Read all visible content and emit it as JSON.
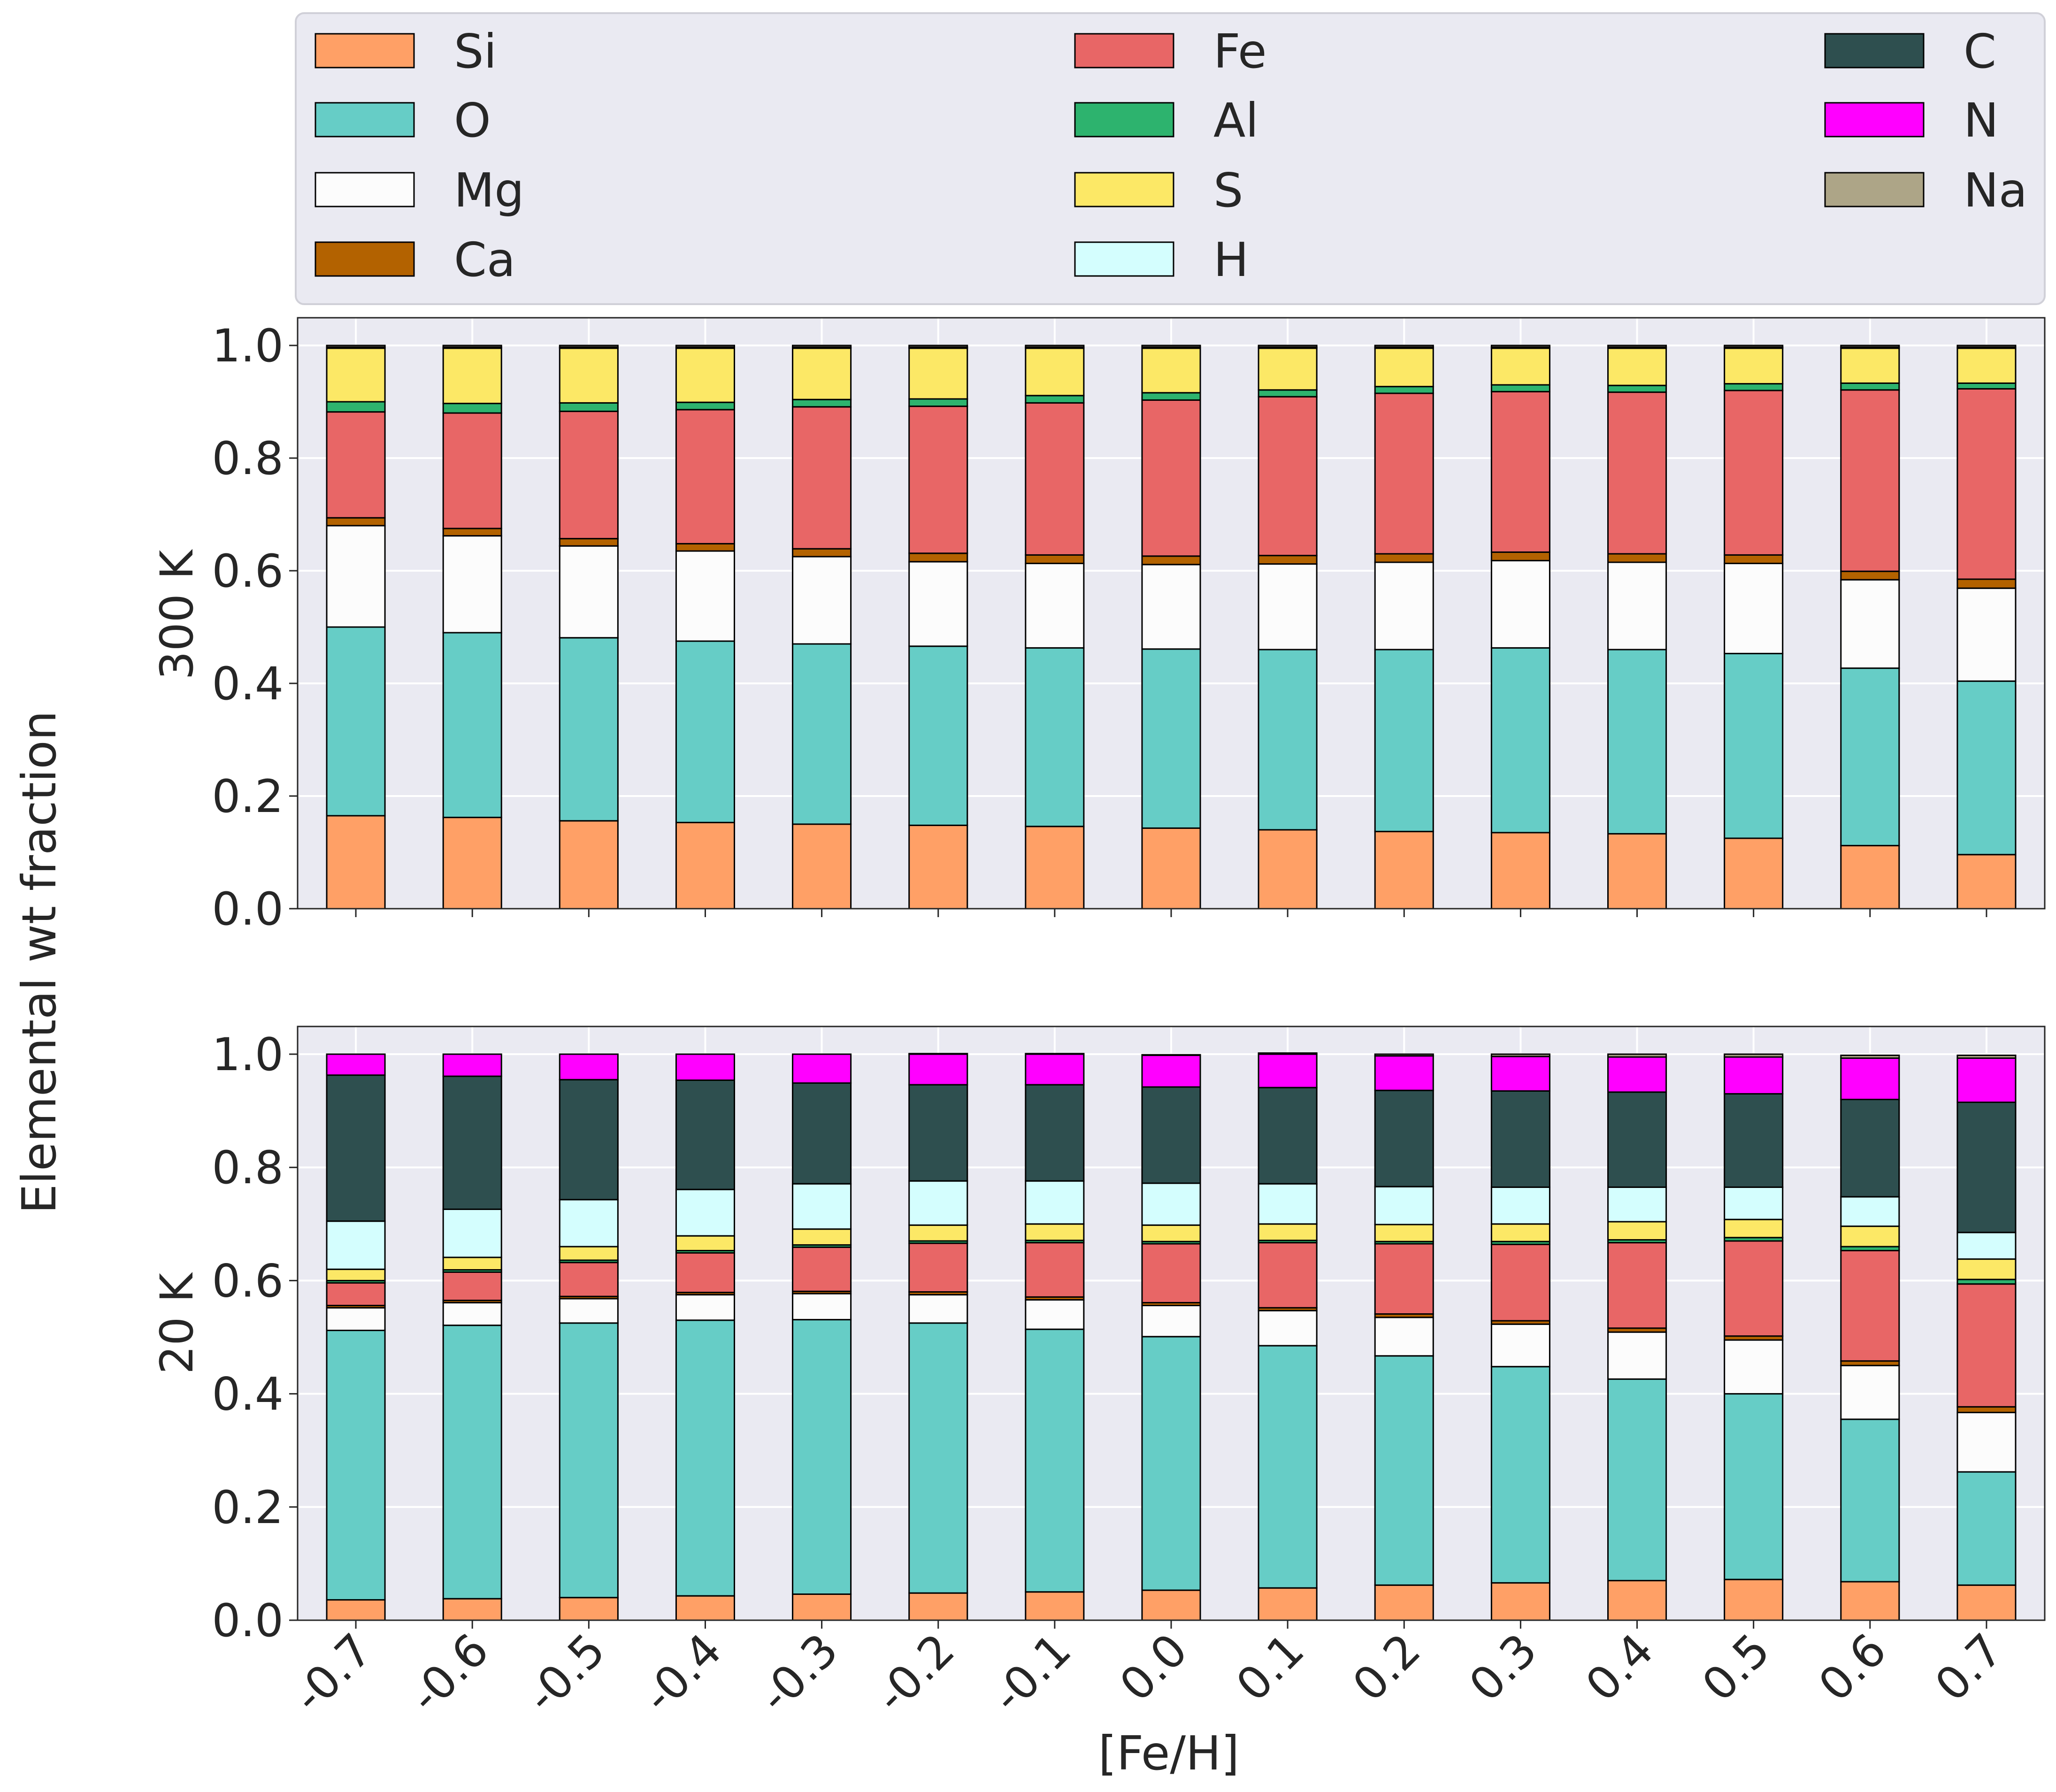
{
  "chart_data": {
    "type": "bar",
    "stacked": true,
    "ylabel": "Elemental wt fraction",
    "xlabel": "[Fe/H]",
    "legend_placement": "top",
    "categories": [
      "-0.7",
      "-0.6",
      "-0.5",
      "-0.4",
      "-0.3",
      "-0.2",
      "-0.1",
      "0.0",
      "0.1",
      "0.2",
      "0.3",
      "0.4",
      "0.5",
      "0.6",
      "0.7"
    ],
    "yticks": [
      "0.0",
      "0.2",
      "0.4",
      "0.6",
      "0.8",
      "1.0"
    ],
    "ylim": [
      0,
      1.05
    ],
    "legend": [
      {
        "name": "Si",
        "color": "#FFA066"
      },
      {
        "name": "O",
        "color": "#66CDC6"
      },
      {
        "name": "Mg",
        "color": "#FCFCFC"
      },
      {
        "name": "Ca",
        "color": "#B36200"
      },
      {
        "name": "Fe",
        "color": "#E86666"
      },
      {
        "name": "Al",
        "color": "#2DB36E"
      },
      {
        "name": "S",
        "color": "#FCE866"
      },
      {
        "name": "H",
        "color": "#D4FEFE"
      },
      {
        "name": "C",
        "color": "#2E4F4F"
      },
      {
        "name": "N",
        "color": "#FF00FF"
      },
      {
        "name": "Na",
        "color": "#ADA587"
      }
    ],
    "panels": [
      {
        "panel_label": "300 K",
        "series": [
          {
            "name": "Si",
            "values": [
              0.165,
              0.162,
              0.156,
              0.153,
              0.15,
              0.148,
              0.146,
              0.143,
              0.14,
              0.137,
              0.135,
              0.133,
              0.125,
              0.112,
              0.096
            ]
          },
          {
            "name": "O",
            "values": [
              0.335,
              0.328,
              0.325,
              0.322,
              0.32,
              0.318,
              0.317,
              0.318,
              0.32,
              0.323,
              0.328,
              0.327,
              0.328,
              0.315,
              0.308
            ]
          },
          {
            "name": "Mg",
            "values": [
              0.18,
              0.172,
              0.163,
              0.16,
              0.155,
              0.15,
              0.15,
              0.15,
              0.152,
              0.155,
              0.155,
              0.155,
              0.16,
              0.157,
              0.165
            ]
          },
          {
            "name": "Ca",
            "values": [
              0.014,
              0.013,
              0.013,
              0.013,
              0.014,
              0.015,
              0.015,
              0.015,
              0.015,
              0.015,
              0.015,
              0.015,
              0.015,
              0.015,
              0.016
            ]
          },
          {
            "name": "Fe",
            "values": [
              0.188,
              0.205,
              0.226,
              0.238,
              0.252,
              0.261,
              0.27,
              0.277,
              0.282,
              0.285,
              0.285,
              0.287,
              0.292,
              0.322,
              0.338
            ]
          },
          {
            "name": "Al",
            "values": [
              0.018,
              0.017,
              0.015,
              0.013,
              0.013,
              0.013,
              0.013,
              0.013,
              0.012,
              0.012,
              0.012,
              0.012,
              0.012,
              0.012,
              0.01
            ]
          },
          {
            "name": "S",
            "values": [
              0.095,
              0.098,
              0.097,
              0.096,
              0.091,
              0.09,
              0.084,
              0.079,
              0.074,
              0.068,
              0.065,
              0.066,
              0.063,
              0.062,
              0.062
            ]
          },
          {
            "name": "H",
            "values": [
              0,
              0,
              0,
              0,
              0,
              0,
              0,
              0,
              0,
              0,
              0,
              0,
              0,
              0,
              0
            ]
          },
          {
            "name": "C",
            "values": [
              0.002,
              0.002,
              0.002,
              0.002,
              0.002,
              0.002,
              0.002,
              0.002,
              0.002,
              0.002,
              0.002,
              0.002,
              0.002,
              0.002,
              0.002
            ]
          },
          {
            "name": "N",
            "values": [
              0,
              0,
              0,
              0,
              0,
              0,
              0,
              0,
              0,
              0,
              0,
              0,
              0,
              0,
              0
            ]
          },
          {
            "name": "Na",
            "values": [
              0.003,
              0.003,
              0.003,
              0.003,
              0.003,
              0.003,
              0.003,
              0.003,
              0.003,
              0.003,
              0.003,
              0.003,
              0.003,
              0.003,
              0.003
            ]
          }
        ]
      },
      {
        "panel_label": "20 K",
        "series": [
          {
            "name": "Si",
            "values": [
              0.036,
              0.038,
              0.04,
              0.043,
              0.046,
              0.048,
              0.05,
              0.053,
              0.057,
              0.062,
              0.066,
              0.07,
              0.072,
              0.068,
              0.062
            ]
          },
          {
            "name": "O",
            "values": [
              0.476,
              0.483,
              0.485,
              0.487,
              0.485,
              0.477,
              0.464,
              0.448,
              0.428,
              0.405,
              0.382,
              0.356,
              0.328,
              0.287,
              0.2
            ]
          },
          {
            "name": "Mg",
            "values": [
              0.04,
              0.04,
              0.043,
              0.045,
              0.046,
              0.05,
              0.052,
              0.055,
              0.062,
              0.068,
              0.075,
              0.083,
              0.095,
              0.095,
              0.105
            ]
          },
          {
            "name": "Ca",
            "values": [
              0.004,
              0.004,
              0.004,
              0.004,
              0.004,
              0.005,
              0.005,
              0.005,
              0.005,
              0.006,
              0.006,
              0.007,
              0.007,
              0.008,
              0.01
            ]
          },
          {
            "name": "Fe",
            "values": [
              0.04,
              0.05,
              0.06,
              0.07,
              0.078,
              0.086,
              0.096,
              0.104,
              0.115,
              0.124,
              0.135,
              0.151,
              0.168,
              0.195,
              0.217
            ]
          },
          {
            "name": "Al",
            "values": [
              0.004,
              0.004,
              0.004,
              0.004,
              0.004,
              0.004,
              0.004,
              0.004,
              0.004,
              0.004,
              0.005,
              0.005,
              0.006,
              0.007,
              0.008
            ]
          },
          {
            "name": "S",
            "values": [
              0.02,
              0.022,
              0.024,
              0.026,
              0.028,
              0.028,
              0.029,
              0.029,
              0.029,
              0.03,
              0.031,
              0.032,
              0.032,
              0.036,
              0.036
            ]
          },
          {
            "name": "H",
            "values": [
              0.085,
              0.085,
              0.083,
              0.082,
              0.08,
              0.078,
              0.076,
              0.074,
              0.071,
              0.067,
              0.065,
              0.061,
              0.057,
              0.052,
              0.047
            ]
          },
          {
            "name": "C",
            "values": [
              0.258,
              0.235,
              0.212,
              0.193,
              0.178,
              0.17,
              0.17,
              0.17,
              0.17,
              0.17,
              0.17,
              0.168,
              0.165,
              0.172,
              0.23
            ]
          },
          {
            "name": "N",
            "values": [
              0.037,
              0.039,
              0.045,
              0.046,
              0.051,
              0.054,
              0.054,
              0.056,
              0.059,
              0.061,
              0.061,
              0.062,
              0.065,
              0.073,
              0.078
            ]
          },
          {
            "name": "Na",
            "values": [
              0,
              0,
              0,
              0,
              0,
              0.001,
              0.001,
              0.001,
              0.002,
              0.003,
              0.004,
              0.005,
              0.005,
              0.005,
              0.005
            ]
          }
        ]
      }
    ]
  }
}
